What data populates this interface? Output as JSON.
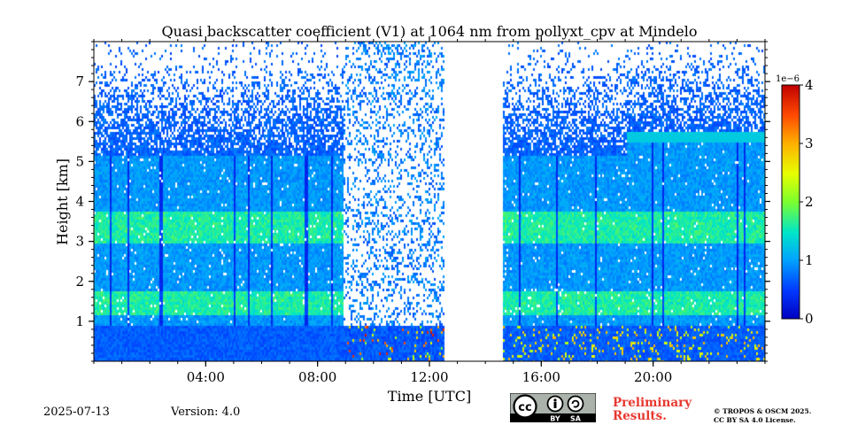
{
  "chart_data": {
    "type": "heatmap",
    "title": "Quasi backscatter coefficient (V1) at 1064 nm from pollyxt_cpv at Mindelo",
    "xlabel": "Time [UTC]",
    "ylabel": "Height [km]",
    "xlim_hours": [
      0,
      24
    ],
    "ylim_km": [
      0,
      8
    ],
    "x_ticks": [
      "04:00",
      "08:00",
      "12:00",
      "16:00",
      "20:00"
    ],
    "x_tick_hours": [
      4,
      8,
      12,
      16,
      20
    ],
    "y_ticks": [
      "1",
      "2",
      "3",
      "4",
      "5",
      "6",
      "7"
    ],
    "y_tick_values": [
      1,
      2,
      3,
      4,
      5,
      6,
      7
    ],
    "colorbar": {
      "ticks": [
        "0",
        "1",
        "2",
        "3",
        "4"
      ],
      "tick_values": [
        0,
        1,
        2,
        3,
        4
      ],
      "multiplier": "1e−6",
      "range": [
        0,
        4
      ],
      "colormap": "jet"
    },
    "no_data_gap_hours": [
      12.5,
      14.6
    ],
    "cloud_top_km": 5.5,
    "aerosol_layers_km": [
      [
        1.2,
        1.8
      ],
      [
        3.0,
        3.8
      ]
    ]
  },
  "footer": {
    "date": "2025-07-13",
    "version": "Version: 4.0",
    "preliminary": [
      "Preliminary",
      "Results."
    ],
    "license": [
      "© TROPOS & OSCM 2025.",
      "CC BY SA 4.0 License."
    ],
    "cc_labels": [
      "BY",
      "SA"
    ]
  },
  "colors": {
    "preliminary": "#e8382f",
    "low": "#1f57d6",
    "mid": "#1fc89b",
    "high": "#ffd700",
    "max": "#d90000"
  }
}
